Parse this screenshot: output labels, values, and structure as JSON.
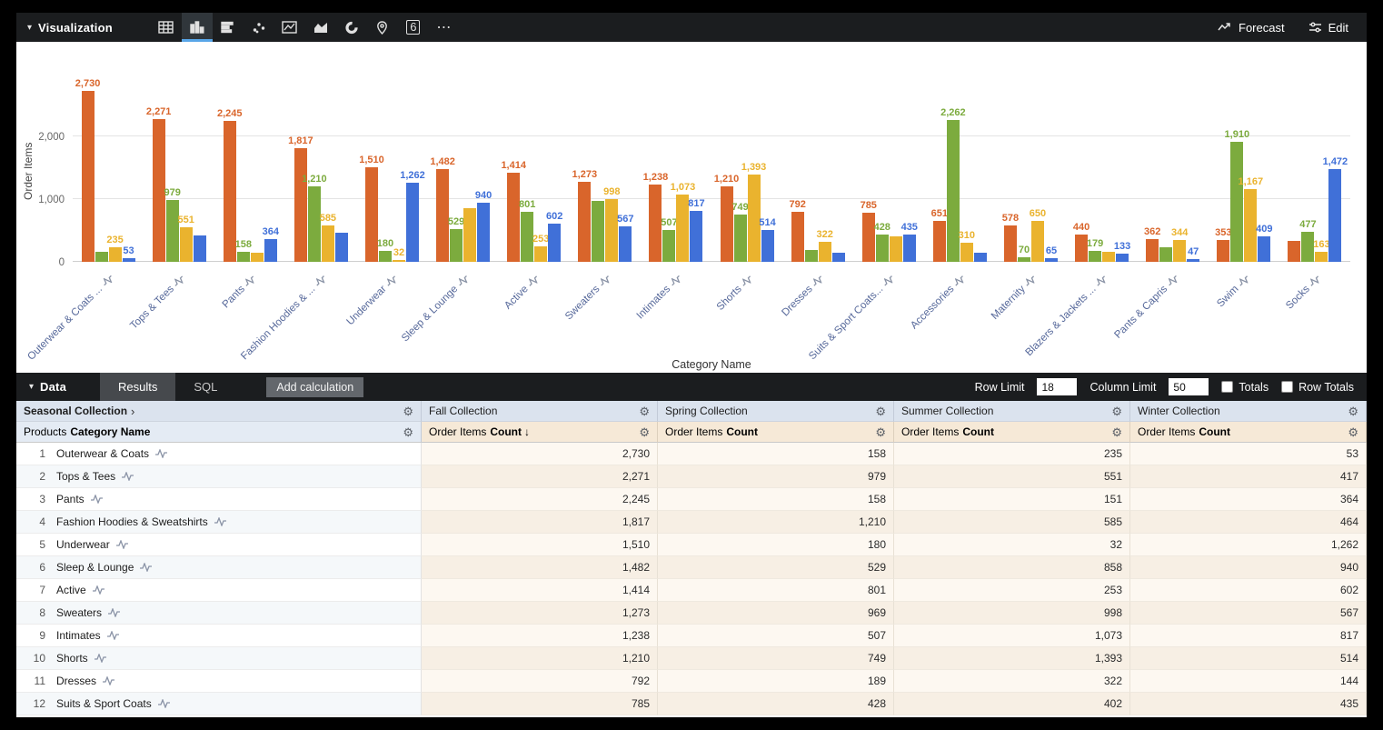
{
  "toolbar": {
    "visualization_label": "Visualization",
    "forecast_label": "Forecast",
    "edit_label": "Edit",
    "single_value_glyph": "6"
  },
  "chart_data": {
    "type": "bar",
    "title": "",
    "xlabel": "Category Name",
    "ylabel": "Order Items",
    "ylim": [
      0,
      2900
    ],
    "grid": "horizontal",
    "legend": "none",
    "yticks": [
      {
        "v": 0,
        "label": "0"
      },
      {
        "v": 1000,
        "label": "1,000"
      },
      {
        "v": 2000,
        "label": "2,000"
      }
    ],
    "categories": [
      "Outerwear & Coats ...",
      "Tops & Tees",
      "Pants",
      "Fashion Hoodies & ...",
      "Underwear",
      "Sleep & Lounge",
      "Active",
      "Sweaters",
      "Intimates",
      "Shorts",
      "Dresses",
      "Suits & Sport Coats...",
      "Accessories",
      "Maternity",
      "Blazers & Jackets ...",
      "Pants & Capris",
      "Swim",
      "Socks"
    ],
    "series": [
      {
        "name": "Fall Collection",
        "color": "#D9652B",
        "values": [
          2730,
          2271,
          2245,
          1817,
          1510,
          1482,
          1414,
          1273,
          1238,
          1210,
          792,
          785,
          651,
          578,
          440,
          362,
          353,
          330
        ],
        "labels": [
          "2,730",
          "2,271",
          "2,245",
          "1,817",
          "1,510",
          "1,482",
          "1,414",
          "1,273",
          "1,238",
          "1,210",
          "792",
          "785",
          "651",
          "578",
          "440",
          "362",
          "353",
          ""
        ]
      },
      {
        "name": "Spring Collection",
        "color": "#7CAB3E",
        "values": [
          158,
          979,
          158,
          1210,
          180,
          529,
          801,
          969,
          507,
          749,
          189,
          428,
          2262,
          70,
          179,
          230,
          1910,
          477
        ],
        "labels": [
          "",
          "979",
          "158",
          "1,210",
          "180",
          "529",
          "801",
          "",
          "507",
          "749",
          "",
          "428",
          "2,262",
          "70",
          "179",
          "",
          "1,910",
          "477"
        ]
      },
      {
        "name": "Summer Collection",
        "color": "#EAB32E",
        "values": [
          235,
          551,
          151,
          585,
          32,
          858,
          253,
          998,
          1073,
          1393,
          322,
          402,
          310,
          650,
          155,
          344,
          1167,
          163
        ],
        "labels": [
          "235",
          "551",
          "",
          "585",
          "32",
          "",
          "253",
          "998",
          "1,073",
          "1,393",
          "322",
          "",
          "310",
          "650",
          "",
          "344",
          "1,167",
          "163"
        ]
      },
      {
        "name": "Winter Collection",
        "color": "#4070D8",
        "values": [
          53,
          417,
          364,
          464,
          1262,
          940,
          602,
          567,
          817,
          514,
          144,
          435,
          150,
          65,
          133,
          47,
          409,
          1472
        ],
        "labels": [
          "53",
          "",
          "364",
          "",
          "1,262",
          "940",
          "602",
          "567",
          "817",
          "514",
          "",
          "435",
          "",
          "65",
          "133",
          "47",
          "409",
          "1,472"
        ]
      }
    ]
  },
  "data_bar": {
    "data_label": "Data",
    "tabs": [
      {
        "label": "Results",
        "active": true
      },
      {
        "label": "SQL",
        "active": false
      }
    ],
    "add_calculation_label": "Add calculation",
    "row_limit_label": "Row Limit",
    "row_limit_value": "18",
    "column_limit_label": "Column Limit",
    "column_limit_value": "50",
    "totals_label": "Totals",
    "totals_checked": false,
    "row_totals_label": "Row Totals",
    "row_totals_checked": false
  },
  "table": {
    "pivot_label": "Seasonal Collection",
    "pivot_chevron": "›",
    "pivot_columns": [
      "Fall Collection",
      "Spring Collection",
      "Summer Collection",
      "Winter Collection"
    ],
    "dimension_header_prefix": "Products",
    "dimension_header_field": "Category Name",
    "measure_header_prefix": "Order Items",
    "measure_header_field": "Count",
    "sorted_column_index": 0,
    "sort_arrow": "↓",
    "rows": [
      {
        "num": "1",
        "category": "Outerwear & Coats",
        "values": [
          "2,730",
          "158",
          "235",
          "53"
        ]
      },
      {
        "num": "2",
        "category": "Tops & Tees",
        "values": [
          "2,271",
          "979",
          "551",
          "417"
        ]
      },
      {
        "num": "3",
        "category": "Pants",
        "values": [
          "2,245",
          "158",
          "151",
          "364"
        ]
      },
      {
        "num": "4",
        "category": "Fashion Hoodies & Sweatshirts",
        "values": [
          "1,817",
          "1,210",
          "585",
          "464"
        ]
      },
      {
        "num": "5",
        "category": "Underwear",
        "values": [
          "1,510",
          "180",
          "32",
          "1,262"
        ]
      },
      {
        "num": "6",
        "category": "Sleep & Lounge",
        "values": [
          "1,482",
          "529",
          "858",
          "940"
        ]
      },
      {
        "num": "7",
        "category": "Active",
        "values": [
          "1,414",
          "801",
          "253",
          "602"
        ]
      },
      {
        "num": "8",
        "category": "Sweaters",
        "values": [
          "1,273",
          "969",
          "998",
          "567"
        ]
      },
      {
        "num": "9",
        "category": "Intimates",
        "values": [
          "1,238",
          "507",
          "1,073",
          "817"
        ]
      },
      {
        "num": "10",
        "category": "Shorts",
        "values": [
          "1,210",
          "749",
          "1,393",
          "514"
        ]
      },
      {
        "num": "11",
        "category": "Dresses",
        "values": [
          "792",
          "189",
          "322",
          "144"
        ]
      },
      {
        "num": "12",
        "category": "Suits & Sport Coats",
        "values": [
          "785",
          "428",
          "402",
          "435"
        ]
      }
    ]
  }
}
